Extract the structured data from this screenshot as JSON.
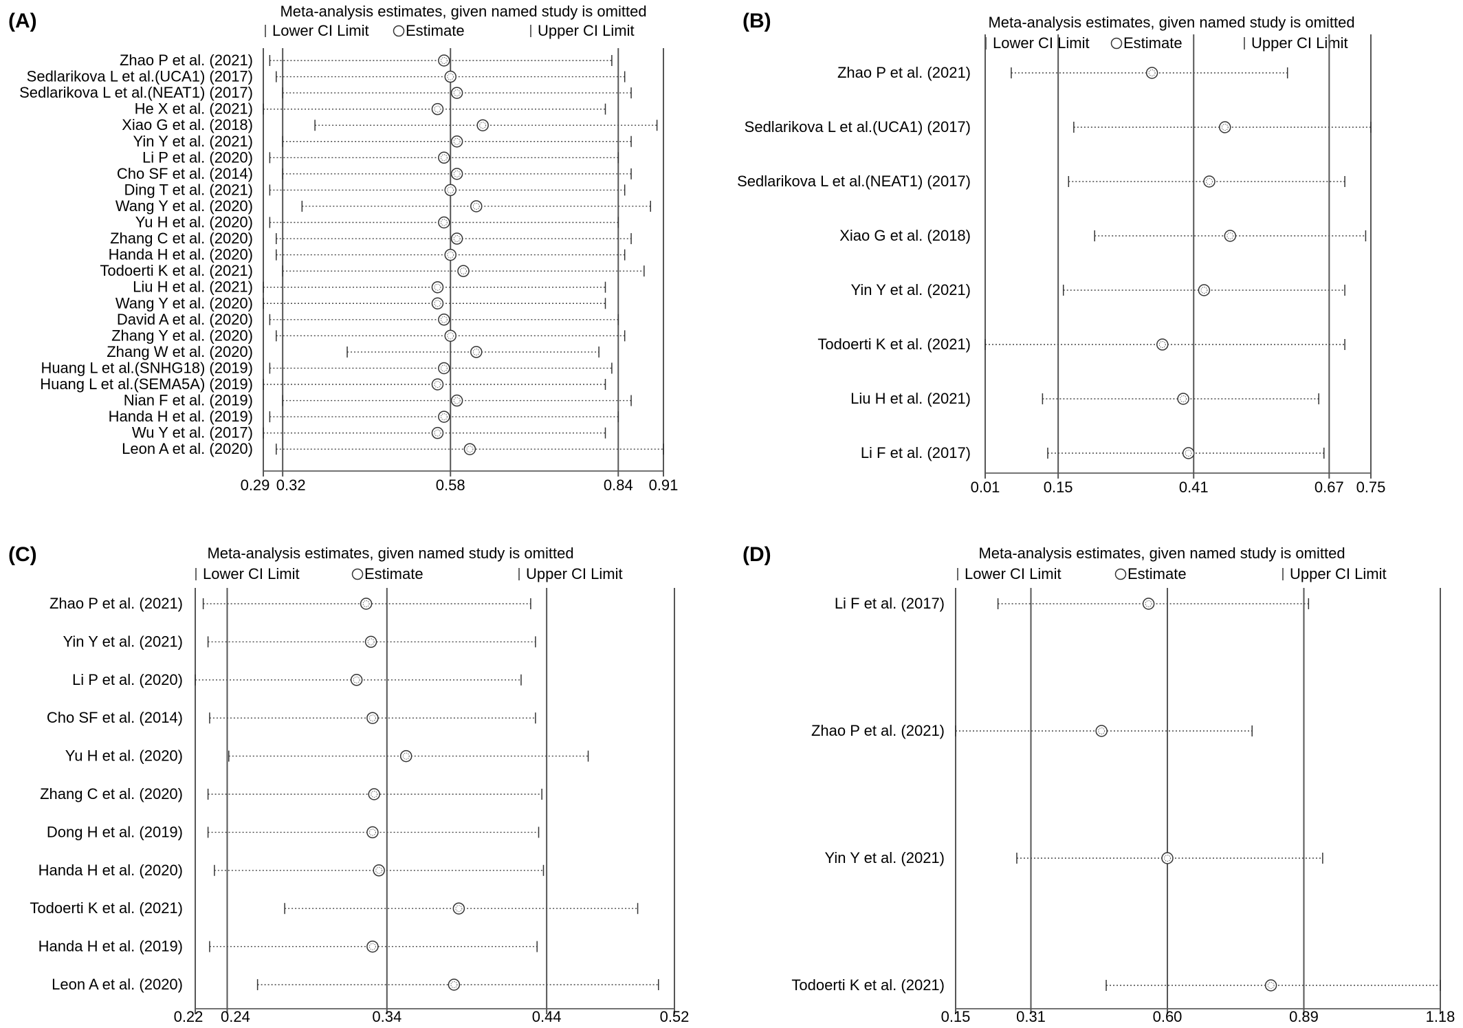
{
  "chart_data": [
    {
      "type": "sensitivity-plot",
      "panel": "(A)",
      "title": "Meta-analysis estimates, given named study is omitted",
      "legend": {
        "lower": "Lower CI Limit",
        "estimate": "Estimate",
        "upper": "Upper CI Limit"
      },
      "ticks": [
        "0.29",
        "0.32",
        "0.58",
        "0.84",
        "0.91"
      ],
      "xlim": [
        0.29,
        0.91
      ],
      "reference": {
        "lower": 0.32,
        "estimate": 0.58,
        "upper": 0.84
      },
      "studies": [
        {
          "label": "Zhao P et al. (2021)",
          "lower": 0.3,
          "estimate": 0.57,
          "upper": 0.83
        },
        {
          "label": "Sedlarikova L et al.(UCA1) (2017)",
          "lower": 0.31,
          "estimate": 0.58,
          "upper": 0.85
        },
        {
          "label": "Sedlarikova L et al.(NEAT1) (2017)",
          "lower": 0.32,
          "estimate": 0.59,
          "upper": 0.86
        },
        {
          "label": "He X et al. (2021)",
          "lower": 0.29,
          "estimate": 0.56,
          "upper": 0.82
        },
        {
          "label": "Xiao G et al. (2018)",
          "lower": 0.37,
          "estimate": 0.63,
          "upper": 0.9
        },
        {
          "label": "Yin Y et al. (2021)",
          "lower": 0.32,
          "estimate": 0.59,
          "upper": 0.86
        },
        {
          "label": "Li P et al. (2020)",
          "lower": 0.3,
          "estimate": 0.57,
          "upper": 0.84
        },
        {
          "label": "Cho SF et al. (2014)",
          "lower": 0.32,
          "estimate": 0.59,
          "upper": 0.86
        },
        {
          "label": "Ding T et al. (2021)",
          "lower": 0.3,
          "estimate": 0.58,
          "upper": 0.85
        },
        {
          "label": "Wang Y et al. (2020)",
          "lower": 0.35,
          "estimate": 0.62,
          "upper": 0.89
        },
        {
          "label": "Yu H et al. (2020)",
          "lower": 0.3,
          "estimate": 0.57,
          "upper": 0.84
        },
        {
          "label": "Zhang C et al. (2020)",
          "lower": 0.31,
          "estimate": 0.59,
          "upper": 0.86
        },
        {
          "label": "Handa H et al. (2020)",
          "lower": 0.31,
          "estimate": 0.58,
          "upper": 0.85
        },
        {
          "label": "Todoerti K et al. (2021)",
          "lower": 0.32,
          "estimate": 0.6,
          "upper": 0.88
        },
        {
          "label": "Liu H et al. (2021)",
          "lower": 0.29,
          "estimate": 0.56,
          "upper": 0.82
        },
        {
          "label": "Wang Y et al. (2020)",
          "lower": 0.29,
          "estimate": 0.56,
          "upper": 0.82
        },
        {
          "label": "David A et al. (2020)",
          "lower": 0.3,
          "estimate": 0.57,
          "upper": 0.84
        },
        {
          "label": "Zhang Y et al. (2020)",
          "lower": 0.31,
          "estimate": 0.58,
          "upper": 0.85
        },
        {
          "label": "Zhang W et al. (2020)",
          "lower": 0.42,
          "estimate": 0.62,
          "upper": 0.81
        },
        {
          "label": "Huang L et al.(SNHG18) (2019)",
          "lower": 0.3,
          "estimate": 0.57,
          "upper": 0.83
        },
        {
          "label": "Huang L et al.(SEMA5A) (2019)",
          "lower": 0.29,
          "estimate": 0.56,
          "upper": 0.82
        },
        {
          "label": "Nian F et al. (2019)",
          "lower": 0.32,
          "estimate": 0.59,
          "upper": 0.86
        },
        {
          "label": "Handa H et al. (2019)",
          "lower": 0.3,
          "estimate": 0.57,
          "upper": 0.84
        },
        {
          "label": "Wu Y  et al.  (2017)",
          "lower": 0.29,
          "estimate": 0.56,
          "upper": 0.82
        },
        {
          "label": "Leon A et al. (2020)",
          "lower": 0.31,
          "estimate": 0.61,
          "upper": 0.91
        }
      ]
    },
    {
      "type": "sensitivity-plot",
      "panel": "(B)",
      "title": "Meta-analysis estimates, given named study is omitted",
      "legend": {
        "lower": "Lower CI Limit",
        "estimate": "Estimate",
        "upper": "Upper CI Limit"
      },
      "ticks": [
        "0.01",
        "0.15",
        "0.41",
        "0.67",
        "0.75"
      ],
      "xlim": [
        0.01,
        0.75
      ],
      "reference": {
        "lower": 0.15,
        "estimate": 0.41,
        "upper": 0.67
      },
      "studies": [
        {
          "label": "Zhao P et al. (2021)",
          "lower": 0.06,
          "estimate": 0.33,
          "upper": 0.59
        },
        {
          "label": "Sedlarikova L et al.(UCA1) (2017)",
          "lower": 0.18,
          "estimate": 0.47,
          "upper": 0.75
        },
        {
          "label": "Sedlarikova L et al.(NEAT1) (2017)",
          "lower": 0.17,
          "estimate": 0.44,
          "upper": 0.7
        },
        {
          "label": "Xiao G et al. (2018)",
          "lower": 0.22,
          "estimate": 0.48,
          "upper": 0.74
        },
        {
          "label": "Yin Y et al. (2021)",
          "lower": 0.16,
          "estimate": 0.43,
          "upper": 0.7
        },
        {
          "label": "Todoerti K et al. (2021)",
          "lower": 0.01,
          "estimate": 0.35,
          "upper": 0.7
        },
        {
          "label": "Liu H et al. (2021)",
          "lower": 0.12,
          "estimate": 0.39,
          "upper": 0.65
        },
        {
          "label": "Li F et al. (2017)",
          "lower": 0.13,
          "estimate": 0.4,
          "upper": 0.66
        }
      ]
    },
    {
      "type": "sensitivity-plot",
      "panel": "(C)",
      "title": "Meta-analysis estimates, given named study is omitted",
      "legend": {
        "lower": "Lower CI Limit",
        "estimate": "Estimate",
        "upper": "Upper CI Limit"
      },
      "ticks": [
        "0.22",
        "0.24",
        "0.34",
        "0.44",
        "0.52"
      ],
      "xlim": [
        0.22,
        0.52
      ],
      "reference": {
        "lower": 0.24,
        "estimate": 0.34,
        "upper": 0.44
      },
      "studies": [
        {
          "label": "Zhao P et al. (2021)",
          "lower": 0.225,
          "estimate": 0.327,
          "upper": 0.43
        },
        {
          "label": "Yin Y et al. (2021)",
          "lower": 0.228,
          "estimate": 0.33,
          "upper": 0.433
        },
        {
          "label": "Li P et al. (2020)",
          "lower": 0.22,
          "estimate": 0.321,
          "upper": 0.424
        },
        {
          "label": "Cho SF et al. (2014)",
          "lower": 0.229,
          "estimate": 0.331,
          "upper": 0.433
        },
        {
          "label": "Yu H et al. (2020)",
          "lower": 0.241,
          "estimate": 0.352,
          "upper": 0.466
        },
        {
          "label": "Zhang C et al. (2020)",
          "lower": 0.228,
          "estimate": 0.332,
          "upper": 0.437
        },
        {
          "label": "Dong H et al. (2019)",
          "lower": 0.228,
          "estimate": 0.331,
          "upper": 0.435
        },
        {
          "label": "Handa H et al. (2020)",
          "lower": 0.232,
          "estimate": 0.335,
          "upper": 0.438
        },
        {
          "label": "Todoerti K et al. (2021)",
          "lower": 0.276,
          "estimate": 0.385,
          "upper": 0.497
        },
        {
          "label": "Handa H et al. (2019)",
          "lower": 0.229,
          "estimate": 0.331,
          "upper": 0.434
        },
        {
          "label": "Leon A et al. (2020)",
          "lower": 0.259,
          "estimate": 0.382,
          "upper": 0.51
        }
      ]
    },
    {
      "type": "sensitivity-plot",
      "panel": "(D)",
      "title": "Meta-analysis estimates, given named study is omitted",
      "legend": {
        "lower": "Lower CI Limit",
        "estimate": "Estimate",
        "upper": "Upper CI Limit"
      },
      "ticks": [
        "0.15",
        "0.31",
        "0.60",
        "0.89",
        "1.18"
      ],
      "xlim": [
        0.15,
        1.18
      ],
      "reference": {
        "lower": 0.31,
        "estimate": 0.6,
        "upper": 0.89
      },
      "studies": [
        {
          "label": "Li F et al. (2017)",
          "lower": 0.24,
          "estimate": 0.56,
          "upper": 0.9
        },
        {
          "label": "Zhao P et al. (2021)",
          "lower": 0.15,
          "estimate": 0.46,
          "upper": 0.78
        },
        {
          "label": "Yin Y et al. (2021)",
          "lower": 0.28,
          "estimate": 0.6,
          "upper": 0.93
        },
        {
          "label": "Todoerti K et al. (2021)",
          "lower": 0.47,
          "estimate": 0.82,
          "upper": 1.18
        }
      ]
    }
  ]
}
